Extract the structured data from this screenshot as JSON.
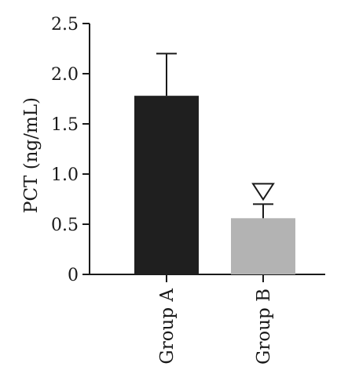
{
  "chart_data": {
    "type": "bar",
    "categories": [
      "Group A",
      "Group B"
    ],
    "values": [
      1.78,
      0.56
    ],
    "error_upper": [
      2.2,
      0.7
    ],
    "bar_colors": [
      "#1f1f1f",
      "#b3b3b3"
    ],
    "ylabel": "PCT (ng/mL)",
    "xlabel": "",
    "ylim": [
      0,
      2.5
    ],
    "yticks": [
      0,
      0.5,
      1.0,
      1.5,
      2.0,
      2.5
    ],
    "ytick_labels": [
      "0",
      "0.5",
      "1.0",
      "1.5",
      "2.0",
      "2.5"
    ],
    "annotations": [
      {
        "category": "Group B",
        "symbol": "open-down-triangle"
      }
    ],
    "grid": false
  }
}
